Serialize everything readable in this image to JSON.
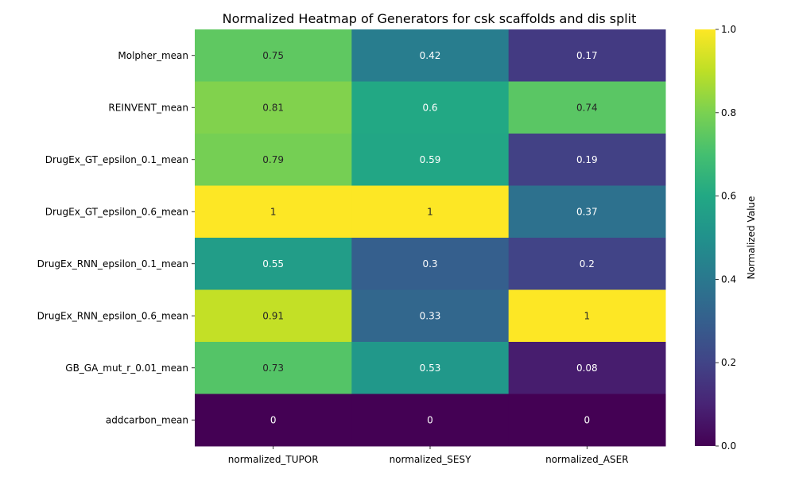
{
  "chart_data": {
    "type": "heatmap",
    "title": "Normalized Heatmap of Generators for csk scaffolds and dis split",
    "rows": [
      "Molpher_mean",
      "REINVENT_mean",
      "DrugEx_GT_epsilon_0.1_mean",
      "DrugEx_GT_epsilon_0.6_mean",
      "DrugEx_RNN_epsilon_0.1_mean",
      "DrugEx_RNN_epsilon_0.6_mean",
      "GB_GA_mut_r_0.01_mean",
      "addcarbon_mean"
    ],
    "columns": [
      "normalized_TUPOR",
      "normalized_SESY",
      "normalized_ASER"
    ],
    "values": [
      [
        0.75,
        0.42,
        0.17
      ],
      [
        0.81,
        0.6,
        0.74
      ],
      [
        0.79,
        0.59,
        0.19
      ],
      [
        1,
        1,
        0.37
      ],
      [
        0.55,
        0.3,
        0.2
      ],
      [
        0.91,
        0.33,
        1
      ],
      [
        0.73,
        0.53,
        0.08
      ],
      [
        0,
        0,
        0
      ]
    ],
    "colormap": "viridis",
    "colorbar": {
      "label": "Normalized Value",
      "range": [
        0,
        1
      ],
      "ticks": [
        "0.0",
        "0.2",
        "0.4",
        "0.6",
        "0.8",
        "1.0"
      ]
    }
  }
}
